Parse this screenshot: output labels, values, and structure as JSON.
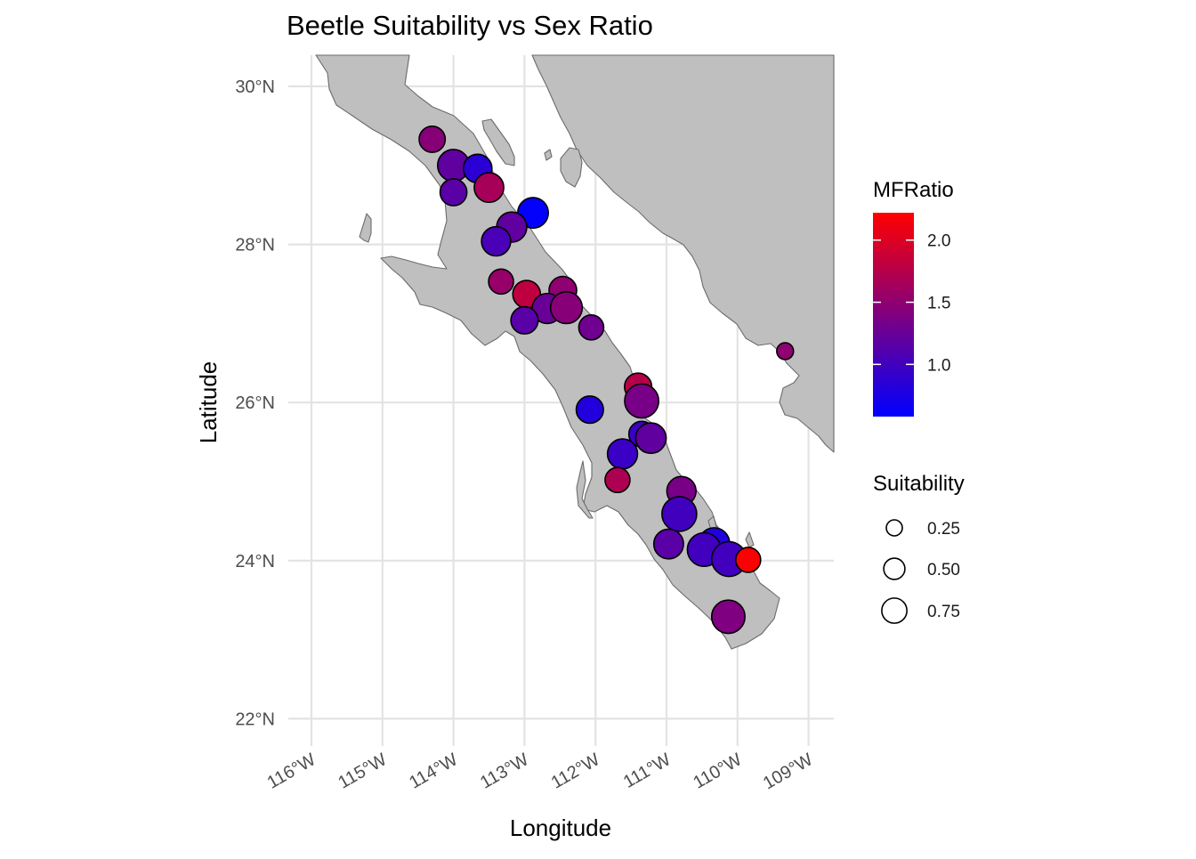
{
  "title": "Beetle Suitability vs Sex Ratio",
  "x_axis_title": "Longitude",
  "y_axis_title": "Latitude",
  "lon_ticks": [
    {
      "value": -116,
      "label": "116°W"
    },
    {
      "value": -115,
      "label": "115°W"
    },
    {
      "value": -114,
      "label": "114°W"
    },
    {
      "value": -113,
      "label": "113°W"
    },
    {
      "value": -112,
      "label": "112°W"
    },
    {
      "value": -111,
      "label": "111°W"
    },
    {
      "value": -110,
      "label": "110°W"
    },
    {
      "value": -109,
      "label": "109°W"
    }
  ],
  "lat_ticks": [
    {
      "value": 30,
      "label": "30°N"
    },
    {
      "value": 28,
      "label": "28°N"
    },
    {
      "value": 26,
      "label": "26°N"
    },
    {
      "value": 24,
      "label": "24°N"
    },
    {
      "value": 22,
      "label": "22°N"
    }
  ],
  "legend": {
    "color_title": "MFRatio",
    "color_ticks": [
      {
        "value": 2.0,
        "label": "2.0"
      },
      {
        "value": 1.5,
        "label": "1.5"
      },
      {
        "value": 1.0,
        "label": "1.0"
      }
    ],
    "color_range": [
      0.58,
      2.22
    ],
    "color_low": "#0000ff",
    "color_high": "#ff0000",
    "size_title": "Suitability",
    "size_items": [
      {
        "value": 0.25,
        "label": "0.25"
      },
      {
        "value": 0.5,
        "label": "0.50"
      },
      {
        "value": 0.75,
        "label": "0.75"
      }
    ]
  },
  "colors": {
    "land_fill": "#bfbfbf",
    "land_outline": "#6b6b6b",
    "grid": "#e3e3e3",
    "point_outline": "#000000"
  },
  "chart_data": {
    "type": "scatter",
    "x_variable": "Longitude",
    "y_variable": "Latitude",
    "color_variable": "MFRatio",
    "size_variable": "Suitability",
    "xlim": [
      -116.4,
      -108.65
    ],
    "ylim": [
      21.7,
      30.4
    ],
    "points": [
      {
        "lon": -114.3,
        "lat": 29.33,
        "mfratio": 1.45,
        "suitability": 0.3
      },
      {
        "lon": -114.0,
        "lat": 29.0,
        "mfratio": 1.2,
        "suitability": 0.6
      },
      {
        "lon": -113.66,
        "lat": 28.96,
        "mfratio": 0.85,
        "suitability": 0.42
      },
      {
        "lon": -114.0,
        "lat": 28.66,
        "mfratio": 1.15,
        "suitability": 0.33
      },
      {
        "lon": -113.5,
        "lat": 28.72,
        "mfratio": 1.65,
        "suitability": 0.47
      },
      {
        "lon": -112.88,
        "lat": 28.4,
        "mfratio": 0.6,
        "suitability": 0.53
      },
      {
        "lon": -113.18,
        "lat": 28.22,
        "mfratio": 1.2,
        "suitability": 0.5
      },
      {
        "lon": -113.4,
        "lat": 28.04,
        "mfratio": 1.05,
        "suitability": 0.45
      },
      {
        "lon": -113.33,
        "lat": 27.53,
        "mfratio": 1.55,
        "suitability": 0.25
      },
      {
        "lon": -112.97,
        "lat": 27.37,
        "mfratio": 1.8,
        "suitability": 0.37
      },
      {
        "lon": -112.46,
        "lat": 27.42,
        "mfratio": 1.5,
        "suitability": 0.37
      },
      {
        "lon": -112.68,
        "lat": 27.19,
        "mfratio": 1.25,
        "suitability": 0.5
      },
      {
        "lon": -112.41,
        "lat": 27.2,
        "mfratio": 1.45,
        "suitability": 0.6
      },
      {
        "lon": -113.0,
        "lat": 27.04,
        "mfratio": 1.15,
        "suitability": 0.35
      },
      {
        "lon": -112.06,
        "lat": 26.95,
        "mfratio": 1.3,
        "suitability": 0.25
      },
      {
        "lon": -111.4,
        "lat": 26.2,
        "mfratio": 1.75,
        "suitability": 0.35
      },
      {
        "lon": -111.35,
        "lat": 26.02,
        "mfratio": 1.35,
        "suitability": 0.75
      },
      {
        "lon": -112.08,
        "lat": 25.91,
        "mfratio": 0.8,
        "suitability": 0.35
      },
      {
        "lon": -111.35,
        "lat": 25.6,
        "mfratio": 0.95,
        "suitability": 0.28
      },
      {
        "lon": -111.22,
        "lat": 25.55,
        "mfratio": 1.2,
        "suitability": 0.52
      },
      {
        "lon": -111.62,
        "lat": 25.35,
        "mfratio": 0.95,
        "suitability": 0.5
      },
      {
        "lon": -111.69,
        "lat": 25.02,
        "mfratio": 1.7,
        "suitability": 0.25
      },
      {
        "lon": -110.79,
        "lat": 24.88,
        "mfratio": 1.35,
        "suitability": 0.45
      },
      {
        "lon": -110.82,
        "lat": 24.59,
        "mfratio": 1.0,
        "suitability": 0.8
      },
      {
        "lon": -110.33,
        "lat": 24.22,
        "mfratio": 0.8,
        "suitability": 0.55
      },
      {
        "lon": -110.97,
        "lat": 24.21,
        "mfratio": 1.15,
        "suitability": 0.48
      },
      {
        "lon": -110.47,
        "lat": 24.14,
        "mfratio": 1.0,
        "suitability": 0.72
      },
      {
        "lon": -110.12,
        "lat": 24.02,
        "mfratio": 1.0,
        "suitability": 0.8
      },
      {
        "lon": -109.85,
        "lat": 24.01,
        "mfratio": 2.2,
        "suitability": 0.25
      },
      {
        "lon": -110.13,
        "lat": 23.29,
        "mfratio": 1.4,
        "suitability": 0.7
      },
      {
        "lon": -109.33,
        "lat": 26.65,
        "mfratio": 1.5,
        "suitability": 0.03
      }
    ]
  }
}
